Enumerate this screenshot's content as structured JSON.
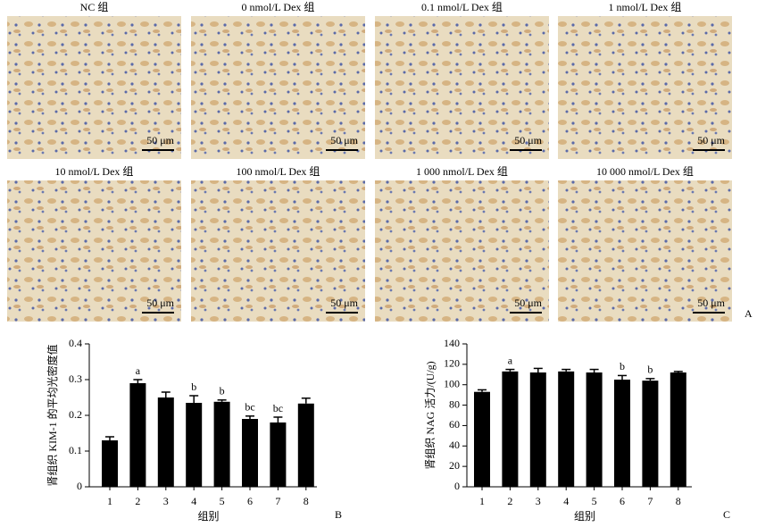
{
  "panel_a": {
    "label": "A",
    "scale_bar": "50 μm",
    "titles": [
      "NC 组",
      "0 nmol/L Dex 组",
      "0.1 nmol/L Dex 组",
      "1 nmol/L Dex 组",
      "10 nmol/L Dex 组",
      "100 nmol/L Dex 组",
      "1 000 nmol/L Dex 组",
      "10 000 nmol/L Dex 组"
    ]
  },
  "chart_data": [
    {
      "type": "bar",
      "panel_label": "B",
      "y_label": "肾组织 KIM-1 的平均光密度值",
      "x_label": "组别",
      "categories": [
        "1",
        "2",
        "3",
        "4",
        "5",
        "6",
        "7",
        "8"
      ],
      "values": [
        0.13,
        0.29,
        0.25,
        0.235,
        0.238,
        0.19,
        0.18,
        0.233
      ],
      "errors": [
        0.01,
        0.01,
        0.015,
        0.02,
        0.005,
        0.008,
        0.015,
        0.015
      ],
      "annotations": [
        null,
        "a",
        null,
        "b",
        "b",
        "bc",
        "bc",
        null
      ],
      "color": "#000000",
      "ylim": [
        0,
        0.4
      ],
      "yticks": [
        0,
        0.1,
        0.2,
        0.3,
        0.4
      ]
    },
    {
      "type": "bar",
      "panel_label": "C",
      "y_label": "肾组织 NAG 活力/(U/g)",
      "x_label": "组别",
      "categories": [
        "1",
        "2",
        "3",
        "4",
        "5",
        "6",
        "7",
        "8"
      ],
      "values": [
        93,
        113,
        112,
        113,
        112,
        105,
        104,
        112
      ],
      "errors": [
        2,
        2,
        4,
        2,
        3,
        4,
        2,
        1
      ],
      "annotations": [
        null,
        "a",
        null,
        null,
        null,
        "b",
        "b",
        null
      ],
      "color": "#000000",
      "ylim": [
        0,
        140
      ],
      "yticks": [
        0,
        20,
        40,
        60,
        80,
        100,
        120,
        140
      ]
    }
  ]
}
